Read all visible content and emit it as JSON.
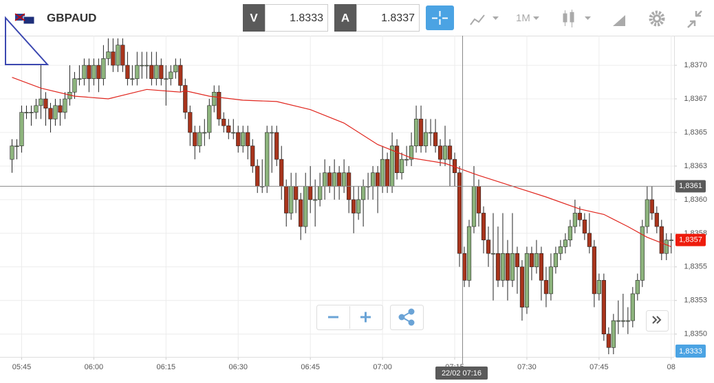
{
  "header": {
    "symbol": "GBPAUD",
    "bid_tag": "V",
    "bid": "1.8333",
    "ask_tag": "A",
    "ask": "1.8337",
    "timeframe": "1M"
  },
  "chart_data": {
    "type": "candlestick",
    "ylim": [
      1.83483,
      1.83722
    ],
    "yticks": [
      {
        "value": 1.837,
        "label": "1,8370"
      },
      {
        "value": 1.83675,
        "label": "1,8367"
      },
      {
        "value": 1.8365,
        "label": "1,8365"
      },
      {
        "value": 1.83625,
        "label": "1,8363"
      },
      {
        "value": 1.836,
        "label": "1,8360"
      },
      {
        "value": 1.83575,
        "label": "1,8358"
      },
      {
        "value": 1.8355,
        "label": "1,8355"
      },
      {
        "value": 1.83525,
        "label": "1,8353"
      },
      {
        "value": 1.835,
        "label": "1,8350"
      }
    ],
    "xlim": [
      -2.5,
      137.6
    ],
    "xticks": [
      {
        "value": 2,
        "label": "05:45"
      },
      {
        "value": 17,
        "label": "06:00"
      },
      {
        "value": 32,
        "label": "06:15"
      },
      {
        "value": 47,
        "label": "06:30"
      },
      {
        "value": 62,
        "label": "06:45"
      },
      {
        "value": 77,
        "label": "07:00"
      },
      {
        "value": 92,
        "label": "07:15"
      },
      {
        "value": 107,
        "label": "07:30"
      },
      {
        "value": 122,
        "label": "07:45"
      },
      {
        "value": 137,
        "label": "08"
      }
    ],
    "up_color": "#8db47d",
    "down_color": "#a8341c",
    "grid": true,
    "candles": [
      [
        1.8363,
        1.83645,
        1.8362,
        1.8364
      ],
      [
        1.8364,
        1.83645,
        1.8363,
        1.8364
      ],
      [
        1.8364,
        1.8367,
        1.83635,
        1.83665
      ],
      [
        1.83665,
        1.8367,
        1.8366,
        1.83665
      ],
      [
        1.83665,
        1.8367,
        1.83655,
        1.83665
      ],
      [
        1.83665,
        1.83675,
        1.8366,
        1.8367
      ],
      [
        1.8367,
        1.837,
        1.8366,
        1.83675
      ],
      [
        1.83675,
        1.8368,
        1.83655,
        1.83668
      ],
      [
        1.83668,
        1.83672,
        1.8365,
        1.8366
      ],
      [
        1.8366,
        1.83675,
        1.83655,
        1.8367
      ],
      [
        1.8367,
        1.83675,
        1.83655,
        1.83665
      ],
      [
        1.83665,
        1.8368,
        1.8366,
        1.83675
      ],
      [
        1.83675,
        1.837,
        1.8367,
        1.8368
      ],
      [
        1.8368,
        1.83695,
        1.83675,
        1.8369
      ],
      [
        1.8369,
        1.837,
        1.83685,
        1.8369
      ],
      [
        1.8369,
        1.83705,
        1.83685,
        1.837
      ],
      [
        1.837,
        1.83705,
        1.8368,
        1.8369
      ],
      [
        1.8369,
        1.83705,
        1.83685,
        1.837
      ],
      [
        1.837,
        1.83705,
        1.8368,
        1.8369
      ],
      [
        1.8369,
        1.83715,
        1.83685,
        1.83705
      ],
      [
        1.83705,
        1.8372,
        1.837,
        1.8371
      ],
      [
        1.8371,
        1.8372,
        1.83695,
        1.837
      ],
      [
        1.837,
        1.8372,
        1.83695,
        1.83715
      ],
      [
        1.83715,
        1.8372,
        1.83695,
        1.837
      ],
      [
        1.837,
        1.8371,
        1.83685,
        1.8369
      ],
      [
        1.8369,
        1.837,
        1.83685,
        1.8369
      ],
      [
        1.8369,
        1.8371,
        1.83685,
        1.837
      ],
      [
        1.837,
        1.8371,
        1.8369,
        1.837
      ],
      [
        1.837,
        1.8371,
        1.8369,
        1.837
      ],
      [
        1.837,
        1.8371,
        1.83685,
        1.8369
      ],
      [
        1.8369,
        1.8371,
        1.83685,
        1.837
      ],
      [
        1.837,
        1.83705,
        1.83685,
        1.8369
      ],
      [
        1.8369,
        1.837,
        1.8367,
        1.8369
      ],
      [
        1.8369,
        1.837,
        1.83685,
        1.83695
      ],
      [
        1.83695,
        1.83705,
        1.8369,
        1.837
      ],
      [
        1.837,
        1.83705,
        1.8368,
        1.83685
      ],
      [
        1.83685,
        1.8369,
        1.8366,
        1.83665
      ],
      [
        1.83665,
        1.8367,
        1.8364,
        1.8365
      ],
      [
        1.8365,
        1.83655,
        1.8363,
        1.8364
      ],
      [
        1.8364,
        1.83655,
        1.83635,
        1.8365
      ],
      [
        1.8365,
        1.8366,
        1.8364,
        1.8365
      ],
      [
        1.8365,
        1.83675,
        1.83645,
        1.8367
      ],
      [
        1.8367,
        1.83685,
        1.83665,
        1.8368
      ],
      [
        1.8368,
        1.83685,
        1.83655,
        1.8366
      ],
      [
        1.8366,
        1.83665,
        1.8365,
        1.83655
      ],
      [
        1.83655,
        1.8366,
        1.83645,
        1.8365
      ],
      [
        1.8365,
        1.8366,
        1.83645,
        1.8365
      ],
      [
        1.8365,
        1.83655,
        1.83635,
        1.8364
      ],
      [
        1.8364,
        1.83655,
        1.83635,
        1.8365
      ],
      [
        1.8365,
        1.83655,
        1.8363,
        1.8364
      ],
      [
        1.8364,
        1.83645,
        1.8362,
        1.83625
      ],
      [
        1.83625,
        1.8363,
        1.83605,
        1.8361
      ],
      [
        1.8361,
        1.8363,
        1.83605,
        1.8361
      ],
      [
        1.8361,
        1.83655,
        1.83605,
        1.8365
      ],
      [
        1.8365,
        1.83655,
        1.8362,
        1.8365
      ],
      [
        1.8365,
        1.83655,
        1.83625,
        1.8363
      ],
      [
        1.8363,
        1.8364,
        1.836,
        1.8361
      ],
      [
        1.8361,
        1.83615,
        1.8358,
        1.8359
      ],
      [
        1.8359,
        1.8362,
        1.83585,
        1.8361
      ],
      [
        1.8361,
        1.8362,
        1.8359,
        1.836
      ],
      [
        1.836,
        1.83605,
        1.8357,
        1.8358
      ],
      [
        1.8358,
        1.8362,
        1.83575,
        1.8361
      ],
      [
        1.8361,
        1.83625,
        1.8359,
        1.836
      ],
      [
        1.836,
        1.83615,
        1.8358,
        1.836
      ],
      [
        1.836,
        1.8362,
        1.83595,
        1.8361
      ],
      [
        1.8361,
        1.8363,
        1.836,
        1.8362
      ],
      [
        1.8362,
        1.83625,
        1.83605,
        1.8361
      ],
      [
        1.8361,
        1.8363,
        1.836,
        1.8362
      ],
      [
        1.8362,
        1.83625,
        1.836,
        1.8361
      ],
      [
        1.8361,
        1.8363,
        1.83605,
        1.8362
      ],
      [
        1.8362,
        1.83625,
        1.8359,
        1.836
      ],
      [
        1.836,
        1.8361,
        1.83575,
        1.8359
      ],
      [
        1.8359,
        1.8361,
        1.83585,
        1.836
      ],
      [
        1.836,
        1.83615,
        1.8358,
        1.8361
      ],
      [
        1.8361,
        1.8362,
        1.836,
        1.8361
      ],
      [
        1.8361,
        1.83625,
        1.836,
        1.8362
      ],
      [
        1.8362,
        1.83625,
        1.8359,
        1.8361
      ],
      [
        1.8361,
        1.8364,
        1.83605,
        1.8363
      ],
      [
        1.8363,
        1.83635,
        1.83605,
        1.8361
      ],
      [
        1.8361,
        1.8365,
        1.83605,
        1.8364
      ],
      [
        1.8364,
        1.83645,
        1.83615,
        1.8362
      ],
      [
        1.8362,
        1.83635,
        1.83615,
        1.8363
      ],
      [
        1.8363,
        1.8364,
        1.83625,
        1.8363
      ],
      [
        1.8363,
        1.8365,
        1.83625,
        1.8364
      ],
      [
        1.8364,
        1.8367,
        1.83635,
        1.8366
      ],
      [
        1.8366,
        1.8367,
        1.83635,
        1.8364
      ],
      [
        1.8364,
        1.8366,
        1.83635,
        1.8365
      ],
      [
        1.8365,
        1.8366,
        1.8364,
        1.8365
      ],
      [
        1.8365,
        1.8366,
        1.83635,
        1.8364
      ],
      [
        1.8364,
        1.83645,
        1.83625,
        1.8363
      ],
      [
        1.8363,
        1.83655,
        1.83625,
        1.8364
      ],
      [
        1.8364,
        1.83645,
        1.8361,
        1.8363
      ],
      [
        1.8363,
        1.83635,
        1.8361,
        1.8362
      ],
      [
        1.8362,
        1.83625,
        1.8355,
        1.8356
      ],
      [
        1.8356,
        1.83565,
        1.83535,
        1.8354
      ],
      [
        1.8354,
        1.83585,
        1.83535,
        1.8358
      ],
      [
        1.8358,
        1.83625,
        1.83575,
        1.8361
      ],
      [
        1.8361,
        1.83615,
        1.8358,
        1.8359
      ],
      [
        1.8359,
        1.83595,
        1.8356,
        1.8357
      ],
      [
        1.8357,
        1.8358,
        1.8355,
        1.8356
      ],
      [
        1.8356,
        1.8359,
        1.83525,
        1.8356
      ],
      [
        1.8356,
        1.8358,
        1.83535,
        1.8354
      ],
      [
        1.8354,
        1.8359,
        1.83535,
        1.8356
      ],
      [
        1.8356,
        1.8357,
        1.83525,
        1.8354
      ],
      [
        1.8354,
        1.8359,
        1.83535,
        1.8356
      ],
      [
        1.8356,
        1.83565,
        1.8353,
        1.8355
      ],
      [
        1.8355,
        1.83555,
        1.8351,
        1.8352
      ],
      [
        1.8352,
        1.83565,
        1.83515,
        1.8356
      ],
      [
        1.8356,
        1.83565,
        1.8354,
        1.8355
      ],
      [
        1.8355,
        1.8357,
        1.83545,
        1.8356
      ],
      [
        1.8356,
        1.83565,
        1.83525,
        1.8354
      ],
      [
        1.8354,
        1.8355,
        1.8352,
        1.8353
      ],
      [
        1.8353,
        1.8356,
        1.83525,
        1.8355
      ],
      [
        1.8355,
        1.83565,
        1.83545,
        1.8356
      ],
      [
        1.8356,
        1.8357,
        1.83555,
        1.83565
      ],
      [
        1.83565,
        1.83575,
        1.8356,
        1.8357
      ],
      [
        1.8357,
        1.83585,
        1.83565,
        1.8358
      ],
      [
        1.8358,
        1.836,
        1.83575,
        1.8359
      ],
      [
        1.8359,
        1.83595,
        1.8358,
        1.83585
      ],
      [
        1.83585,
        1.8359,
        1.8357,
        1.83575
      ],
      [
        1.83575,
        1.8359,
        1.8356,
        1.83565
      ],
      [
        1.83565,
        1.8357,
        1.8352,
        1.8353
      ],
      [
        1.8353,
        1.83545,
        1.83525,
        1.8354
      ],
      [
        1.8354,
        1.83545,
        1.83495,
        1.835
      ],
      [
        1.835,
        1.83505,
        1.83485,
        1.8349
      ],
      [
        1.8349,
        1.83515,
        1.83485,
        1.8351
      ],
      [
        1.8351,
        1.83525,
        1.835,
        1.8351
      ],
      [
        1.8351,
        1.8353,
        1.83505,
        1.8351
      ],
      [
        1.8351,
        1.8352,
        1.835,
        1.8351
      ],
      [
        1.8351,
        1.83535,
        1.83505,
        1.8353
      ],
      [
        1.8353,
        1.83545,
        1.83525,
        1.8354
      ],
      [
        1.8354,
        1.83585,
        1.83535,
        1.8358
      ],
      [
        1.8358,
        1.8361,
        1.83575,
        1.836
      ],
      [
        1.836,
        1.8361,
        1.83585,
        1.8359
      ],
      [
        1.8359,
        1.83595,
        1.83575,
        1.8358
      ],
      [
        1.8358,
        1.83585,
        1.83555,
        1.8356
      ],
      [
        1.8356,
        1.83575,
        1.83555,
        1.8357
      ],
      [
        1.8357,
        1.83575,
        1.8356,
        1.8357
      ]
    ],
    "ma": {
      "color": "#e0241c",
      "x": [
        0,
        6,
        13,
        20,
        28,
        35,
        36,
        41,
        48,
        55,
        62,
        69,
        76,
        83,
        90,
        97,
        104,
        111,
        118,
        123,
        128,
        132,
        137
      ],
      "values": [
        1.83691,
        1.83683,
        1.83677,
        1.83675,
        1.83682,
        1.8368,
        1.83681,
        1.83677,
        1.83674,
        1.83673,
        1.83667,
        1.83657,
        1.83641,
        1.83631,
        1.83627,
        1.83618,
        1.8361,
        1.83602,
        1.83593,
        1.83589,
        1.8358,
        1.83572,
        1.83565
      ]
    },
    "crosshair": {
      "time": "22/02 07:16",
      "price": {
        "value": 1.8361,
        "label": "1,8361"
      }
    },
    "last_price": {
      "value": 1.8357,
      "label": "1,8357"
    },
    "bid_marker": "1,8333"
  }
}
